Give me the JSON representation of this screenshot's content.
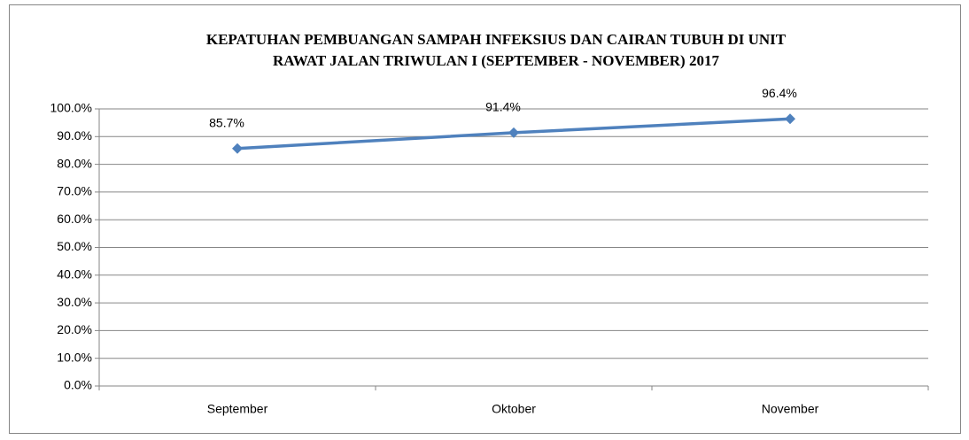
{
  "chart_data": {
    "type": "line",
    "title": [
      "KEPATUHAN PEMBUANGAN SAMPAH  INFEKSIUS DAN CAIRAN TUBUH  DI UNIT",
      "RAWAT JALAN TRIWULAN I (SEPTEMBER - NOVEMBER) 2017"
    ],
    "categories": [
      "September",
      "Oktober",
      "November"
    ],
    "values": [
      85.7,
      91.4,
      96.4
    ],
    "value_labels": [
      "85.7%",
      "91.4%",
      "96.4%"
    ],
    "color": "#4f81bd",
    "ylim": [
      0,
      100
    ],
    "yticks": [
      {
        "value": 0,
        "label": "0.0%"
      },
      {
        "value": 10,
        "label": "10.0%"
      },
      {
        "value": 20,
        "label": "20.0%"
      },
      {
        "value": 30,
        "label": "30.0%"
      },
      {
        "value": 40,
        "label": "40.0%"
      },
      {
        "value": 50,
        "label": "50.0%"
      },
      {
        "value": 60,
        "label": "60.0%"
      },
      {
        "value": 70,
        "label": "70.0%"
      },
      {
        "value": 80,
        "label": "80.0%"
      },
      {
        "value": 90,
        "label": "90.0%"
      },
      {
        "value": 100,
        "label": "100.0%"
      }
    ],
    "grid": true
  }
}
